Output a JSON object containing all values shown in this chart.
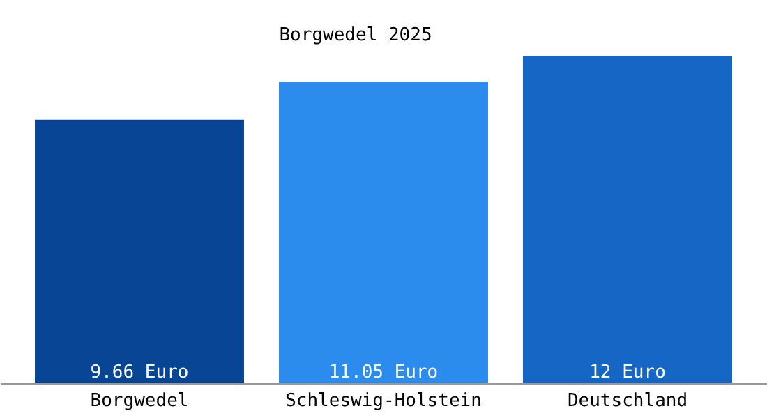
{
  "chart_data": {
    "type": "bar",
    "title": "Borgwedel 2025",
    "categories": [
      "Borgwedel",
      "Schleswig-Holstein",
      "Deutschland"
    ],
    "values": [
      9.66,
      11.05,
      12
    ],
    "colors": [
      "#084594",
      "#2b8cee",
      "#1666c5"
    ],
    "value_labels": [
      "9.66 Euro",
      "11.05 Euro",
      "12 Euro"
    ],
    "grid": false
  }
}
